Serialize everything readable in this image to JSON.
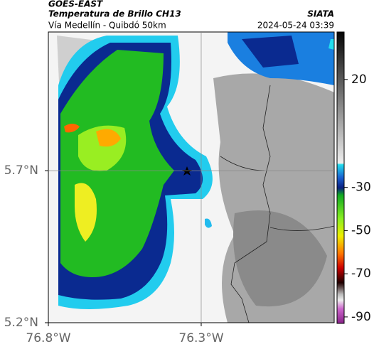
{
  "header": {
    "source": "GOES-EAST",
    "title": "Temperatura de Brillo CH13",
    "credit": "SIATA",
    "subtitle": "Vía Medellín - Quibdó 50km",
    "timestamp": "2024-05-24 03:39"
  },
  "map": {
    "xlim": [
      -76.8,
      -75.865
    ],
    "ylim": [
      5.2,
      6.156
    ],
    "xticks": [
      {
        "value": -76.8,
        "label": "76.8°W"
      },
      {
        "value": -76.3,
        "label": "76.3°W"
      }
    ],
    "yticks": [
      {
        "value": 5.2,
        "label": "5.2°N"
      },
      {
        "value": 5.7,
        "label": "5.7°N"
      }
    ],
    "grid": true
  },
  "colorbar": {
    "clim": [
      -93,
      42
    ],
    "ticks": [
      20,
      -30,
      -50,
      -70,
      -90
    ]
  }
}
